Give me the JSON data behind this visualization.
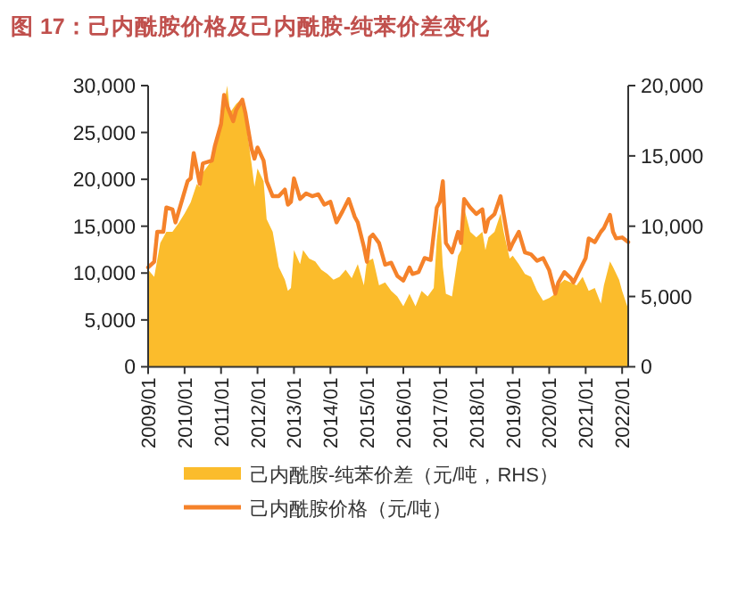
{
  "chart_data": {
    "type": "line",
    "title": "图 17：己内酰胺价格及己内酰胺-纯苯价差变化",
    "legend": "bottom",
    "grid": false,
    "marker": "none",
    "xlim": [
      "2009-01",
      "2022-03"
    ],
    "xticks": [
      {
        "value": "2009-01",
        "label": "2009/01"
      },
      {
        "value": "2010-01",
        "label": "2010/01"
      },
      {
        "value": "2011-01",
        "label": "2011/01"
      },
      {
        "value": "2012-01",
        "label": "2012/01"
      },
      {
        "value": "2013-01",
        "label": "2013/01"
      },
      {
        "value": "2014-01",
        "label": "2014/01"
      },
      {
        "value": "2015-01",
        "label": "2015/01"
      },
      {
        "value": "2016-01",
        "label": "2016/01"
      },
      {
        "value": "2017-01",
        "label": "2017/01"
      },
      {
        "value": "2018-01",
        "label": "2018/01"
      },
      {
        "value": "2019-01",
        "label": "2019/01"
      },
      {
        "value": "2020-01",
        "label": "2020/01"
      },
      {
        "value": "2021-01",
        "label": "2021/01"
      },
      {
        "value": "2022-01",
        "label": "2022/01"
      }
    ],
    "ylim": [
      0,
      30000
    ],
    "yticks": [
      {
        "value": 0,
        "label": "0"
      },
      {
        "value": 5000,
        "label": "5,000"
      },
      {
        "value": 10000,
        "label": "10,000"
      },
      {
        "value": 15000,
        "label": "15,000"
      },
      {
        "value": 20000,
        "label": "20,000"
      },
      {
        "value": 25000,
        "label": "25,000"
      },
      {
        "value": 30000,
        "label": "30,000"
      }
    ],
    "y2lim": [
      0,
      20000
    ],
    "y2ticks": [
      {
        "value": 0,
        "label": "0"
      },
      {
        "value": 5000,
        "label": "5,000"
      },
      {
        "value": 10000,
        "label": "10,000"
      },
      {
        "value": 15000,
        "label": "15,000"
      },
      {
        "value": 20000,
        "label": "20,000"
      }
    ],
    "series": [
      {
        "name": "己内酰胺-纯苯价差（元/吨，RHS）",
        "type": "area",
        "axis": "y2",
        "color": "#fbbc2c",
        "x": [
          "2009-01",
          "2009-03",
          "2009-05",
          "2009-07",
          "2009-09",
          "2009-11",
          "2010-01",
          "2010-03",
          "2010-05",
          "2010-06",
          "2010-07",
          "2010-10",
          "2010-11",
          "2011-01",
          "2011-03",
          "2011-04",
          "2011-06",
          "2011-08",
          "2011-09",
          "2011-11",
          "2011-12",
          "2012-01",
          "2012-03",
          "2012-04",
          "2012-06",
          "2012-08",
          "2012-10",
          "2012-11",
          "2012-12",
          "2013-01",
          "2013-03",
          "2013-04",
          "2013-06",
          "2013-08",
          "2013-10",
          "2013-12",
          "2014-02",
          "2014-04",
          "2014-06",
          "2014-08",
          "2014-10",
          "2014-12",
          "2015-01",
          "2015-03",
          "2015-05",
          "2015-07",
          "2015-09",
          "2015-11",
          "2016-01",
          "2016-03",
          "2016-05",
          "2016-07",
          "2016-09",
          "2016-11",
          "2016-12",
          "2017-01",
          "2017-02",
          "2017-03",
          "2017-05",
          "2017-07",
          "2017-08",
          "2017-09",
          "2017-11",
          "2018-01",
          "2018-03",
          "2018-04",
          "2018-05",
          "2018-07",
          "2018-09",
          "2018-10",
          "2018-12",
          "2019-01",
          "2019-03",
          "2019-05",
          "2019-07",
          "2019-09",
          "2019-11",
          "2020-01",
          "2020-03",
          "2020-04",
          "2020-06",
          "2020-08",
          "2020-10",
          "2020-12",
          "2021-02",
          "2021-04",
          "2021-06",
          "2021-07",
          "2021-09",
          "2021-10",
          "2021-12",
          "2022-01",
          "2022-03"
        ],
        "values": [
          6900,
          6400,
          8800,
          9600,
          9600,
          10200,
          10900,
          11700,
          13000,
          12800,
          13800,
          14700,
          15500,
          17200,
          20000,
          18100,
          18700,
          19100,
          17600,
          14500,
          12800,
          14100,
          13200,
          10500,
          9600,
          7100,
          6200,
          5400,
          5600,
          8300,
          7300,
          8300,
          7700,
          7500,
          6900,
          6600,
          6200,
          6400,
          6900,
          6300,
          7300,
          5800,
          7500,
          7700,
          5800,
          6000,
          5400,
          5000,
          4300,
          5200,
          4300,
          5400,
          5000,
          5600,
          9000,
          10900,
          7100,
          5200,
          5000,
          7900,
          8300,
          11300,
          9600,
          9200,
          9600,
          8300,
          9200,
          9600,
          10900,
          9600,
          7700,
          7900,
          7300,
          6600,
          6400,
          5400,
          4700,
          4900,
          5200,
          5800,
          6200,
          6000,
          5800,
          6400,
          5400,
          5600,
          4500,
          5800,
          7500,
          7100,
          6200,
          5400,
          4100
        ]
      },
      {
        "name": "己内酰胺价格（元/吨）",
        "line_style": "solid",
        "color": "#f5822a",
        "x": [
          "2009-01",
          "2009-03",
          "2009-04",
          "2009-06",
          "2009-07",
          "2009-09",
          "2009-10",
          "2009-12",
          "2010-02",
          "2010-03",
          "2010-04",
          "2010-06",
          "2010-07",
          "2010-10",
          "2010-11",
          "2011-01",
          "2011-02",
          "2011-03",
          "2011-05",
          "2011-06",
          "2011-08",
          "2011-09",
          "2011-11",
          "2011-12",
          "2012-01",
          "2012-03",
          "2012-04",
          "2012-06",
          "2012-08",
          "2012-10",
          "2012-11",
          "2012-12",
          "2013-01",
          "2013-03",
          "2013-05",
          "2013-07",
          "2013-09",
          "2013-11",
          "2014-01",
          "2014-03",
          "2014-05",
          "2014-07",
          "2014-09",
          "2014-10",
          "2014-12",
          "2015-01",
          "2015-02",
          "2015-03",
          "2015-05",
          "2015-07",
          "2015-09",
          "2015-11",
          "2016-01",
          "2016-03",
          "2016-04",
          "2016-06",
          "2016-08",
          "2016-10",
          "2016-12",
          "2017-01",
          "2017-02",
          "2017-03",
          "2017-05",
          "2017-07",
          "2017-08",
          "2017-09",
          "2017-11",
          "2018-01",
          "2018-03",
          "2018-04",
          "2018-05",
          "2018-07",
          "2018-09",
          "2018-10",
          "2018-12",
          "2019-01",
          "2019-03",
          "2019-05",
          "2019-07",
          "2019-09",
          "2019-11",
          "2020-01",
          "2020-03",
          "2020-04",
          "2020-06",
          "2020-08",
          "2020-09",
          "2020-11",
          "2021-01",
          "2021-02",
          "2021-04",
          "2021-06",
          "2021-07",
          "2021-09",
          "2021-10",
          "2021-11",
          "2022-01",
          "2022-03"
        ],
        "values": [
          10600,
          11200,
          14400,
          14400,
          17000,
          16800,
          15400,
          17600,
          19800,
          20100,
          22800,
          19500,
          21700,
          22000,
          23600,
          25900,
          29000,
          27800,
          26200,
          27400,
          28500,
          27100,
          23300,
          22200,
          23400,
          22000,
          19800,
          18200,
          18200,
          18900,
          17300,
          17600,
          20100,
          17900,
          18500,
          18200,
          18400,
          17300,
          17600,
          15400,
          16600,
          17900,
          16000,
          15400,
          12800,
          11200,
          13800,
          14100,
          13200,
          10900,
          11100,
          9700,
          9200,
          10600,
          9900,
          10100,
          11600,
          11400,
          17000,
          17600,
          19800,
          13200,
          12200,
          14400,
          13200,
          17900,
          17000,
          16300,
          16800,
          14400,
          15700,
          16300,
          18200,
          16300,
          12500,
          13200,
          14400,
          12200,
          12000,
          11300,
          11600,
          10300,
          7800,
          9000,
          10100,
          9500,
          9000,
          10300,
          11600,
          13700,
          13300,
          14400,
          14800,
          16200,
          14400,
          13700,
          13800,
          13300
        ]
      }
    ]
  }
}
